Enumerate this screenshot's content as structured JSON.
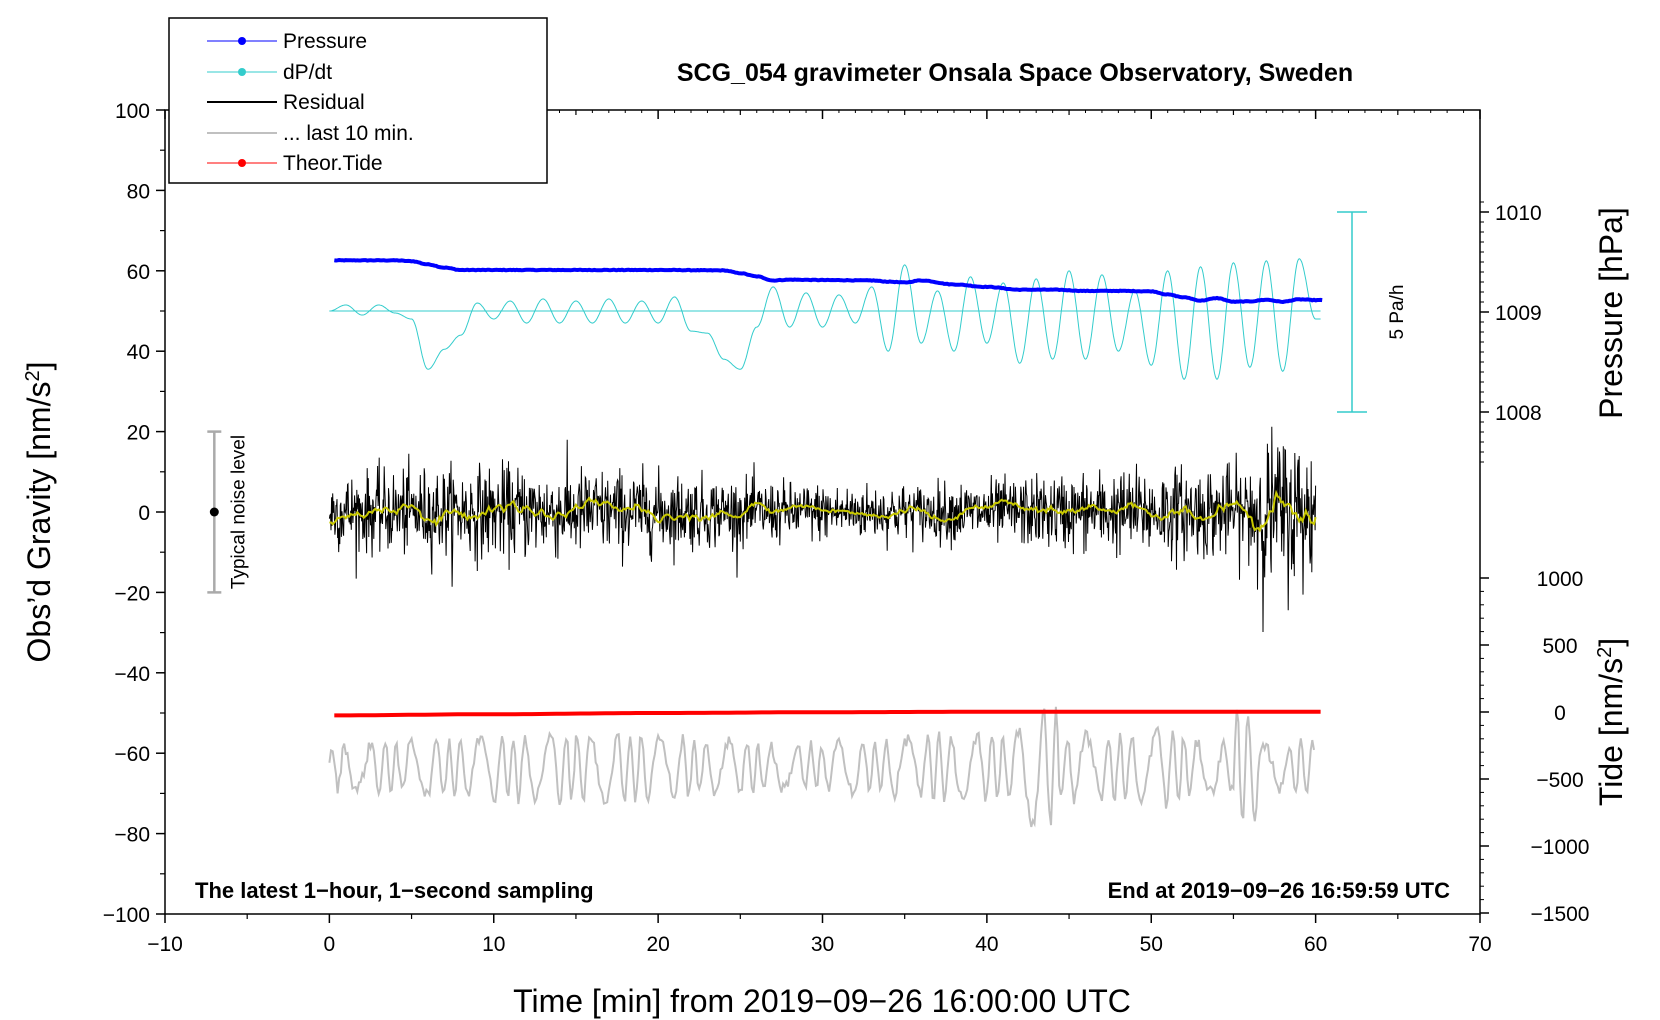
{
  "chart_data": {
    "type": "line",
    "title": "SCG_054 gravimeter Onsala Space Observatory, Sweden",
    "xlabel": "Time [min] from 2019−09−26 16:00:00 UTC",
    "ylabel_prefix": "Obs’d Gravity [nm/s",
    "ylabel_sup": "2",
    "ylabel_suffix": "]",
    "xlim": [
      -10,
      70
    ],
    "ylim": [
      -100,
      100
    ],
    "xticks": [
      -10,
      0,
      10,
      20,
      30,
      40,
      50,
      60,
      70
    ],
    "xtick_labels": [
      "−10",
      "0",
      "10",
      "20",
      "30",
      "40",
      "50",
      "60",
      "70"
    ],
    "yticks": [
      -100,
      -80,
      -60,
      -40,
      -20,
      0,
      20,
      40,
      60,
      80,
      100
    ],
    "ytick_labels": [
      "−100",
      "−80",
      "−60",
      "−40",
      "−20",
      "0",
      "20",
      "40",
      "60",
      "80",
      "100"
    ],
    "pressure_axis": {
      "label": "Pressure [hPa]",
      "ticks": [
        1008,
        1009,
        1010
      ],
      "tick_labels": [
        "1008",
        "1009",
        "1010"
      ]
    },
    "tide_axis": {
      "label_prefix": "Tide [nm/s",
      "label_sup": "2",
      "label_suffix": "]",
      "ticks": [
        -1500,
        -1000,
        -500,
        0,
        500,
        1000
      ],
      "tick_labels": [
        "−1500",
        "−1000",
        "−500",
        "0",
        "500",
        "1000"
      ]
    },
    "legend": {
      "position": "top-left",
      "entries": [
        "Pressure",
        "dP/dt",
        "Residual",
        "... last 10 min.",
        "Theor.Tide"
      ]
    },
    "noise_bar": {
      "label": "Typical noise level",
      "center": 0,
      "half_width": 20,
      "x": -7
    },
    "scale_bar": {
      "label": "5 Pa/h"
    },
    "footer_left": "The latest 1−hour, 1−second sampling",
    "footer_right": "End at 2019−09−26 16:59:59 UTC",
    "series": [
      {
        "name": "Pressure",
        "color": "#0000ff",
        "units": "nm/s^2 (plot scale)",
        "x": [
          0,
          2,
          4,
          5,
          6,
          7,
          8,
          10,
          15,
          20,
          24,
          25,
          26,
          27,
          28,
          30,
          33,
          34,
          35,
          36,
          38,
          40,
          42,
          44,
          46,
          48,
          50,
          51,
          52,
          53,
          54,
          55,
          56,
          57,
          58,
          59,
          60
        ],
        "values": [
          62.6,
          62.6,
          62.6,
          62.4,
          61.6,
          60.8,
          60.2,
          60.2,
          60.2,
          60.2,
          60.1,
          59.4,
          58.6,
          57.6,
          57.8,
          57.7,
          57.6,
          57.3,
          57.1,
          57.6,
          56.6,
          56.0,
          55.3,
          55.3,
          55.0,
          55.0,
          54.9,
          54.1,
          53.4,
          52.6,
          53.2,
          52.3,
          52.4,
          52.8,
          52.3,
          52.9,
          52.7
        ]
      },
      {
        "name": "dP/dt",
        "color": "#33cccc",
        "baseline": 50,
        "x": [
          0,
          1,
          2,
          3,
          4,
          5,
          6,
          7,
          8,
          9,
          10,
          11,
          12,
          13,
          14,
          15,
          16,
          17,
          18,
          19,
          20,
          21,
          22,
          23,
          24,
          25,
          26,
          27,
          28,
          29,
          30,
          31,
          32,
          33,
          34,
          35,
          36,
          37,
          38,
          39,
          40,
          41,
          42,
          43,
          44,
          45,
          46,
          47,
          48,
          49,
          50,
          51,
          52,
          53,
          54,
          55,
          56,
          57,
          58,
          59,
          60
        ],
        "values": [
          50,
          51.5,
          49,
          51.5,
          49.5,
          48,
          35.5,
          40.5,
          44,
          52,
          48,
          52.5,
          47,
          53,
          47,
          52.5,
          47,
          53,
          47,
          52.5,
          47,
          53.5,
          45,
          44.5,
          38,
          35.5,
          46,
          56,
          46,
          54.5,
          46,
          54,
          47,
          56,
          40,
          61.5,
          42,
          55,
          40,
          58.5,
          42,
          57,
          37,
          58,
          38,
          60,
          38,
          59,
          40,
          55,
          36.5,
          60,
          33,
          61,
          33,
          62,
          36,
          62.5,
          35,
          63,
          48
        ]
      },
      {
        "name": "Residual",
        "color": "#000000",
        "x_start": 0,
        "x_end": 60,
        "noise_std": 4.5
      },
      {
        "name": "... last 10 min.",
        "color": "#c0c0c0",
        "center": -63.5,
        "x_start": 0,
        "x_end": 60
      },
      {
        "name": "Theor.Tide",
        "color": "#ff0000",
        "x": [
          0,
          10,
          20,
          30,
          40,
          50,
          60
        ],
        "values": [
          -50.6,
          -50.3,
          -50.0,
          -49.8,
          -49.7,
          -49.7,
          -49.7
        ]
      }
    ]
  }
}
